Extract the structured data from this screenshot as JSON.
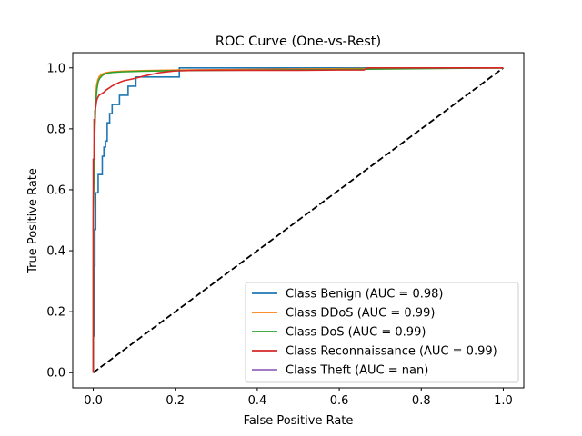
{
  "chart_data": {
    "type": "line",
    "title": "ROC Curve (One-vs-Rest)",
    "xlabel": "False Positive Rate",
    "ylabel": "True Positive Rate",
    "xlim": [
      -0.05,
      1.05
    ],
    "ylim": [
      -0.05,
      1.05
    ],
    "xticks": [
      "0.0",
      "0.2",
      "0.4",
      "0.6",
      "0.8",
      "1.0"
    ],
    "yticks": [
      "0.0",
      "0.2",
      "0.4",
      "0.6",
      "0.8",
      "1.0"
    ],
    "grid": false,
    "legend_position": "lower-right",
    "series": [
      {
        "name": "Class Benign (AUC = 0.98)",
        "color": "#1f77b4",
        "points": [
          [
            0,
            0
          ],
          [
            0,
            0.12
          ],
          [
            0.002,
            0.12
          ],
          [
            0.002,
            0.35
          ],
          [
            0.004,
            0.35
          ],
          [
            0.004,
            0.47
          ],
          [
            0.006,
            0.47
          ],
          [
            0.006,
            0.59
          ],
          [
            0.012,
            0.59
          ],
          [
            0.012,
            0.65
          ],
          [
            0.022,
            0.65
          ],
          [
            0.022,
            0.71
          ],
          [
            0.026,
            0.71
          ],
          [
            0.026,
            0.74
          ],
          [
            0.03,
            0.74
          ],
          [
            0.03,
            0.76
          ],
          [
            0.034,
            0.76
          ],
          [
            0.034,
            0.82
          ],
          [
            0.04,
            0.82
          ],
          [
            0.04,
            0.85
          ],
          [
            0.046,
            0.85
          ],
          [
            0.046,
            0.88
          ],
          [
            0.064,
            0.88
          ],
          [
            0.064,
            0.91
          ],
          [
            0.085,
            0.91
          ],
          [
            0.085,
            0.94
          ],
          [
            0.104,
            0.94
          ],
          [
            0.104,
            0.97
          ],
          [
            0.21,
            0.97
          ],
          [
            0.21,
            1.0
          ],
          [
            1.0,
            1.0
          ]
        ]
      },
      {
        "name": "Class DDoS (AUC = 0.99)",
        "color": "#ff7f0e",
        "points": [
          [
            0,
            0
          ],
          [
            0,
            0.55
          ],
          [
            0.002,
            0.72
          ],
          [
            0.004,
            0.83
          ],
          [
            0.006,
            0.9
          ],
          [
            0.008,
            0.94
          ],
          [
            0.011,
            0.96
          ],
          [
            0.015,
            0.972
          ],
          [
            0.02,
            0.979
          ],
          [
            0.03,
            0.984
          ],
          [
            0.045,
            0.987
          ],
          [
            0.07,
            0.989
          ],
          [
            0.12,
            0.991
          ],
          [
            0.2,
            0.993
          ],
          [
            0.4,
            0.995
          ],
          [
            0.7,
            0.998
          ],
          [
            1.0,
            1.0
          ]
        ]
      },
      {
        "name": "Class DoS (AUC = 0.99)",
        "color": "#2ca02c",
        "points": [
          [
            0,
            0
          ],
          [
            0,
            0.5
          ],
          [
            0.002,
            0.68
          ],
          [
            0.004,
            0.8
          ],
          [
            0.006,
            0.88
          ],
          [
            0.009,
            0.93
          ],
          [
            0.012,
            0.955
          ],
          [
            0.016,
            0.966
          ],
          [
            0.022,
            0.975
          ],
          [
            0.03,
            0.981
          ],
          [
            0.045,
            0.985
          ],
          [
            0.07,
            0.987
          ],
          [
            0.12,
            0.989
          ],
          [
            0.2,
            0.991
          ],
          [
            0.4,
            0.993
          ],
          [
            0.7,
            0.996
          ],
          [
            1.0,
            1.0
          ]
        ]
      },
      {
        "name": "Class Reconnaissance (AUC = 0.99)",
        "color": "#d62728",
        "points": [
          [
            0,
            0
          ],
          [
            0,
            0.7
          ],
          [
            0.002,
            0.7
          ],
          [
            0.002,
            0.83
          ],
          [
            0.004,
            0.83
          ],
          [
            0.004,
            0.86
          ],
          [
            0.006,
            0.87
          ],
          [
            0.008,
            0.89
          ],
          [
            0.01,
            0.9
          ],
          [
            0.014,
            0.91
          ],
          [
            0.02,
            0.915
          ],
          [
            0.026,
            0.92
          ],
          [
            0.032,
            0.928
          ],
          [
            0.04,
            0.935
          ],
          [
            0.045,
            0.94
          ],
          [
            0.055,
            0.947
          ],
          [
            0.065,
            0.953
          ],
          [
            0.075,
            0.958
          ],
          [
            0.09,
            0.962
          ],
          [
            0.1,
            0.965
          ],
          [
            0.12,
            0.972
          ],
          [
            0.14,
            0.978
          ],
          [
            0.16,
            0.984
          ],
          [
            0.185,
            0.988
          ],
          [
            0.2,
            0.99
          ],
          [
            0.25,
            0.992
          ],
          [
            0.3,
            0.992
          ],
          [
            0.4,
            0.992
          ],
          [
            0.5,
            0.992
          ],
          [
            0.6,
            0.993
          ],
          [
            0.66,
            0.993
          ],
          [
            0.67,
            1.0
          ],
          [
            1.0,
            1.0
          ]
        ]
      },
      {
        "name": "Class Theft (AUC = nan)",
        "color": "#9467bd",
        "points": []
      }
    ],
    "reference_line": {
      "style": "dashed",
      "color": "#000000",
      "points": [
        [
          0,
          0
        ],
        [
          1,
          1
        ]
      ]
    }
  }
}
